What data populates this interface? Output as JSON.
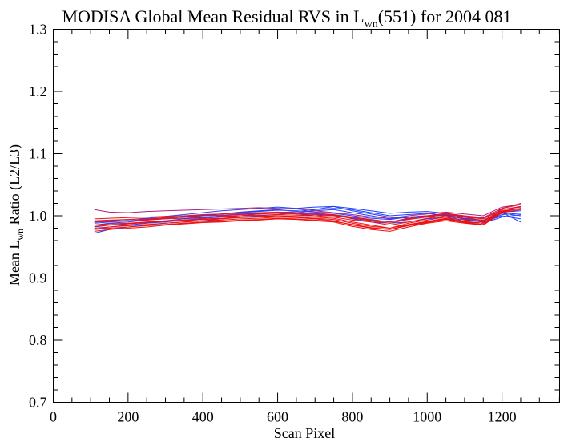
{
  "chart_data": {
    "type": "line",
    "title": {
      "prefix": "MODISA Global Mean Residual RVS in L",
      "subscript": "wn",
      "suffix": "(551) for 2004 081"
    },
    "xlabel": "Scan Pixel",
    "ylabel": {
      "prefix": "Mean L",
      "subscript": "wn",
      "suffix": " Ratio (L2/L3)"
    },
    "xlim": [
      0,
      1354
    ],
    "ylim": [
      0.7,
      1.3
    ],
    "x_ticks": [
      0,
      200,
      400,
      600,
      800,
      1000,
      1200
    ],
    "x_tick_labels": [
      "0",
      "200",
      "400",
      "600",
      "800",
      "1000",
      "1200"
    ],
    "y_ticks": [
      0.7,
      0.8,
      0.9,
      1.0,
      1.1,
      1.2,
      1.3
    ],
    "y_tick_labels": [
      "0.7",
      "0.8",
      "0.9",
      "1.0",
      "1.1",
      "1.2",
      "1.3"
    ],
    "grid": false,
    "colors": {
      "blue": "#2040ff",
      "red": "#ee1010",
      "purple": "#b0207a"
    },
    "x": [
      110,
      150,
      200,
      250,
      300,
      350,
      400,
      450,
      500,
      550,
      600,
      650,
      700,
      750,
      800,
      850,
      900,
      950,
      1000,
      1050,
      1100,
      1150,
      1200,
      1250
    ],
    "series": [
      {
        "color": "#2040ff",
        "values": [
          0.972,
          0.978,
          0.982,
          0.985,
          0.988,
          0.99,
          0.992,
          0.995,
          0.998,
          1.0,
          1.002,
          1.005,
          1.008,
          1.01,
          1.005,
          1.0,
          0.995,
          0.998,
          1.0,
          1.002,
          0.99,
          0.985,
          1.005,
          0.99
        ]
      },
      {
        "color": "#2040ff",
        "values": [
          0.978,
          0.982,
          0.985,
          0.988,
          0.99,
          0.993,
          0.996,
          0.998,
          1.0,
          1.003,
          1.005,
          1.007,
          1.01,
          1.012,
          1.01,
          1.005,
          1.0,
          1.002,
          1.004,
          1.0,
          0.995,
          0.99,
          1.0,
          0.995
        ]
      },
      {
        "color": "#2040ff",
        "values": [
          0.985,
          0.988,
          0.99,
          0.993,
          0.996,
          0.998,
          1.0,
          1.003,
          1.006,
          1.008,
          1.01,
          1.012,
          1.014,
          1.015,
          1.012,
          1.008,
          1.004,
          1.006,
          1.007,
          1.004,
          0.998,
          0.992,
          1.004,
          1.0
        ]
      },
      {
        "color": "#2040ff",
        "values": [
          0.99,
          0.992,
          0.994,
          0.996,
          0.999,
          1.002,
          1.005,
          1.008,
          1.01,
          1.012,
          1.014,
          1.012,
          1.01,
          1.015,
          1.008,
          1.003,
          0.998,
          0.996,
          1.0,
          1.002,
          0.994,
          0.99,
          1.002,
          1.004
        ]
      },
      {
        "color": "#2040ff",
        "values": [
          0.982,
          0.985,
          0.987,
          0.99,
          0.992,
          0.995,
          0.997,
          1.0,
          1.002,
          1.004,
          1.006,
          1.003,
          1.0,
          1.002,
          0.995,
          0.99,
          0.988,
          0.99,
          0.995,
          0.998,
          0.99,
          0.988,
          0.998,
          1.002
        ]
      },
      {
        "color": "#2040ff",
        "values": [
          0.988,
          0.99,
          0.992,
          0.994,
          0.996,
          0.999,
          1.001,
          1.003,
          1.005,
          1.007,
          1.009,
          1.008,
          1.006,
          1.004,
          1.0,
          0.996,
          0.994,
          0.998,
          1.0,
          1.001,
          0.996,
          0.992,
          1.006,
          1.008
        ]
      },
      {
        "color": "#ee1010",
        "values": [
          0.98,
          0.982,
          0.984,
          0.986,
          0.988,
          0.99,
          0.992,
          0.993,
          0.995,
          0.996,
          0.998,
          0.997,
          0.995,
          0.992,
          0.985,
          0.98,
          0.978,
          0.985,
          0.99,
          0.995,
          0.99,
          0.988,
          1.01,
          1.015
        ]
      },
      {
        "color": "#ee1010",
        "values": [
          0.985,
          0.987,
          0.988,
          0.99,
          0.992,
          0.993,
          0.995,
          0.996,
          0.998,
          0.999,
          1.0,
          0.999,
          0.998,
          0.996,
          0.99,
          0.985,
          0.98,
          0.988,
          0.993,
          0.998,
          0.993,
          0.99,
          1.012,
          1.018
        ]
      },
      {
        "color": "#ee1010",
        "values": [
          0.99,
          0.991,
          0.992,
          0.993,
          0.995,
          0.996,
          0.998,
          0.999,
          1.0,
          1.001,
          1.002,
          1.001,
          1.0,
          0.998,
          0.993,
          0.99,
          0.985,
          0.99,
          0.996,
          1.0,
          0.996,
          0.993,
          1.008,
          1.012
        ]
      },
      {
        "color": "#ee1010",
        "values": [
          0.975,
          0.978,
          0.98,
          0.982,
          0.985,
          0.987,
          0.989,
          0.99,
          0.992,
          0.993,
          0.995,
          0.994,
          0.992,
          0.99,
          0.983,
          0.978,
          0.975,
          0.982,
          0.988,
          0.992,
          0.988,
          0.985,
          1.005,
          1.01
        ]
      },
      {
        "color": "#ee1010",
        "values": [
          0.992,
          0.993,
          0.994,
          0.995,
          0.997,
          0.998,
          1.0,
          1.001,
          1.002,
          1.003,
          1.004,
          1.003,
          1.002,
          1.0,
          0.996,
          0.992,
          0.988,
          0.994,
          0.998,
          1.002,
          0.998,
          0.995,
          1.01,
          1.015
        ]
      },
      {
        "color": "#ee1010",
        "values": [
          0.983,
          0.985,
          0.987,
          0.989,
          0.991,
          0.992,
          0.994,
          0.995,
          0.997,
          0.998,
          1.0,
          0.998,
          0.996,
          0.994,
          0.988,
          0.983,
          0.98,
          0.986,
          0.991,
          0.996,
          0.991,
          0.988,
          1.007,
          1.012
        ]
      },
      {
        "color": "#ee1010",
        "values": [
          0.978,
          0.98,
          0.982,
          0.984,
          0.986,
          0.988,
          0.99,
          0.991,
          0.993,
          0.994,
          0.996,
          0.995,
          0.993,
          0.991,
          0.986,
          0.981,
          0.978,
          0.984,
          0.989,
          0.994,
          0.989,
          0.986,
          1.006,
          1.012
        ]
      },
      {
        "color": "#ee1010",
        "values": [
          0.995,
          0.996,
          0.997,
          0.998,
          0.999,
          1.0,
          1.002,
          1.003,
          1.004,
          1.005,
          1.006,
          1.005,
          1.004,
          1.002,
          0.998,
          0.994,
          0.99,
          0.996,
          1.0,
          1.004,
          1.0,
          0.997,
          1.012,
          1.02
        ]
      },
      {
        "color": "#b0207a",
        "values": [
          1.01,
          1.006,
          1.005,
          1.007,
          1.008,
          1.009,
          1.01,
          1.011,
          1.012,
          1.013,
          1.012,
          1.011,
          1.008,
          1.005,
          1.002,
          0.998,
          0.996,
          1.0,
          1.003,
          1.006,
          1.003,
          1.0,
          1.014,
          1.018
        ]
      },
      {
        "color": "#b0207a",
        "values": [
          0.99,
          0.991,
          0.992,
          0.994,
          0.996,
          0.998,
          1.0,
          1.001,
          1.003,
          1.004,
          1.005,
          1.004,
          1.003,
          1.001,
          0.997,
          0.993,
          0.99,
          0.995,
          0.999,
          1.003,
          0.999,
          0.996,
          1.01,
          1.014
        ]
      }
    ]
  }
}
